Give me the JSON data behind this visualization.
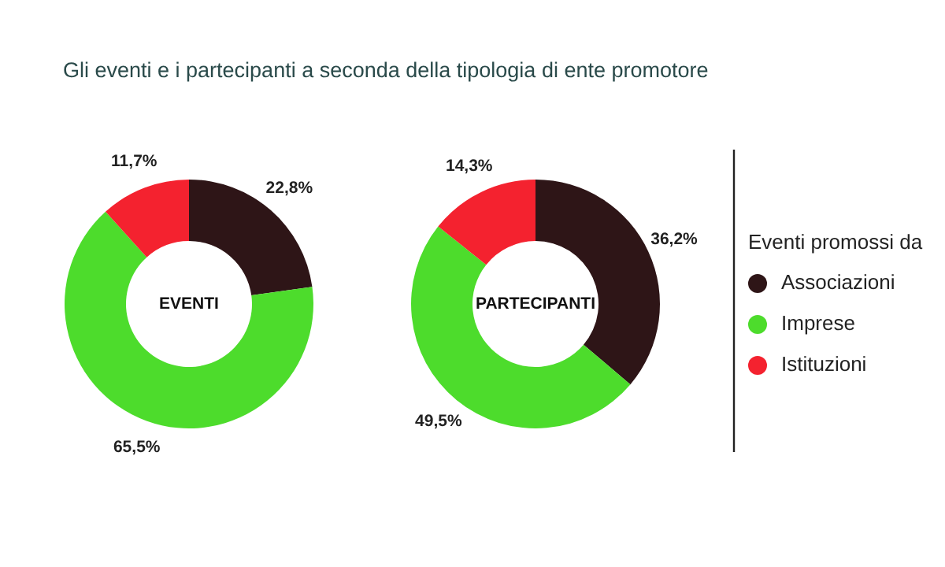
{
  "chart_data": [
    {
      "type": "donut",
      "title": "Gli eventi e i partecipanti a seconda della tipologia di ente promotore",
      "categories": [
        "Associazioni",
        "Imprese",
        "Istituzioni"
      ],
      "values": [
        22.8,
        65.5,
        11.7
      ],
      "value_labels": [
        "22,8%",
        "65,5%",
        "11,7%"
      ],
      "colors": [
        "#2e1517",
        "#4ddc2c",
        "#f4222f"
      ],
      "annotations": [
        "EVENTI"
      ],
      "legend": "right",
      "legend_title": "Eventi promossi da"
    },
    {
      "type": "donut",
      "categories": [
        null,
        null,
        null
      ],
      "values": [
        36.2,
        49.5,
        14.3
      ],
      "value_labels": [
        "36,2%",
        "49,5%",
        "14,3%"
      ],
      "colors": [
        "#2e1517",
        "#4ddc2c",
        "#f4222f"
      ],
      "annotations": [
        "PARTECIPANTI"
      ]
    }
  ]
}
